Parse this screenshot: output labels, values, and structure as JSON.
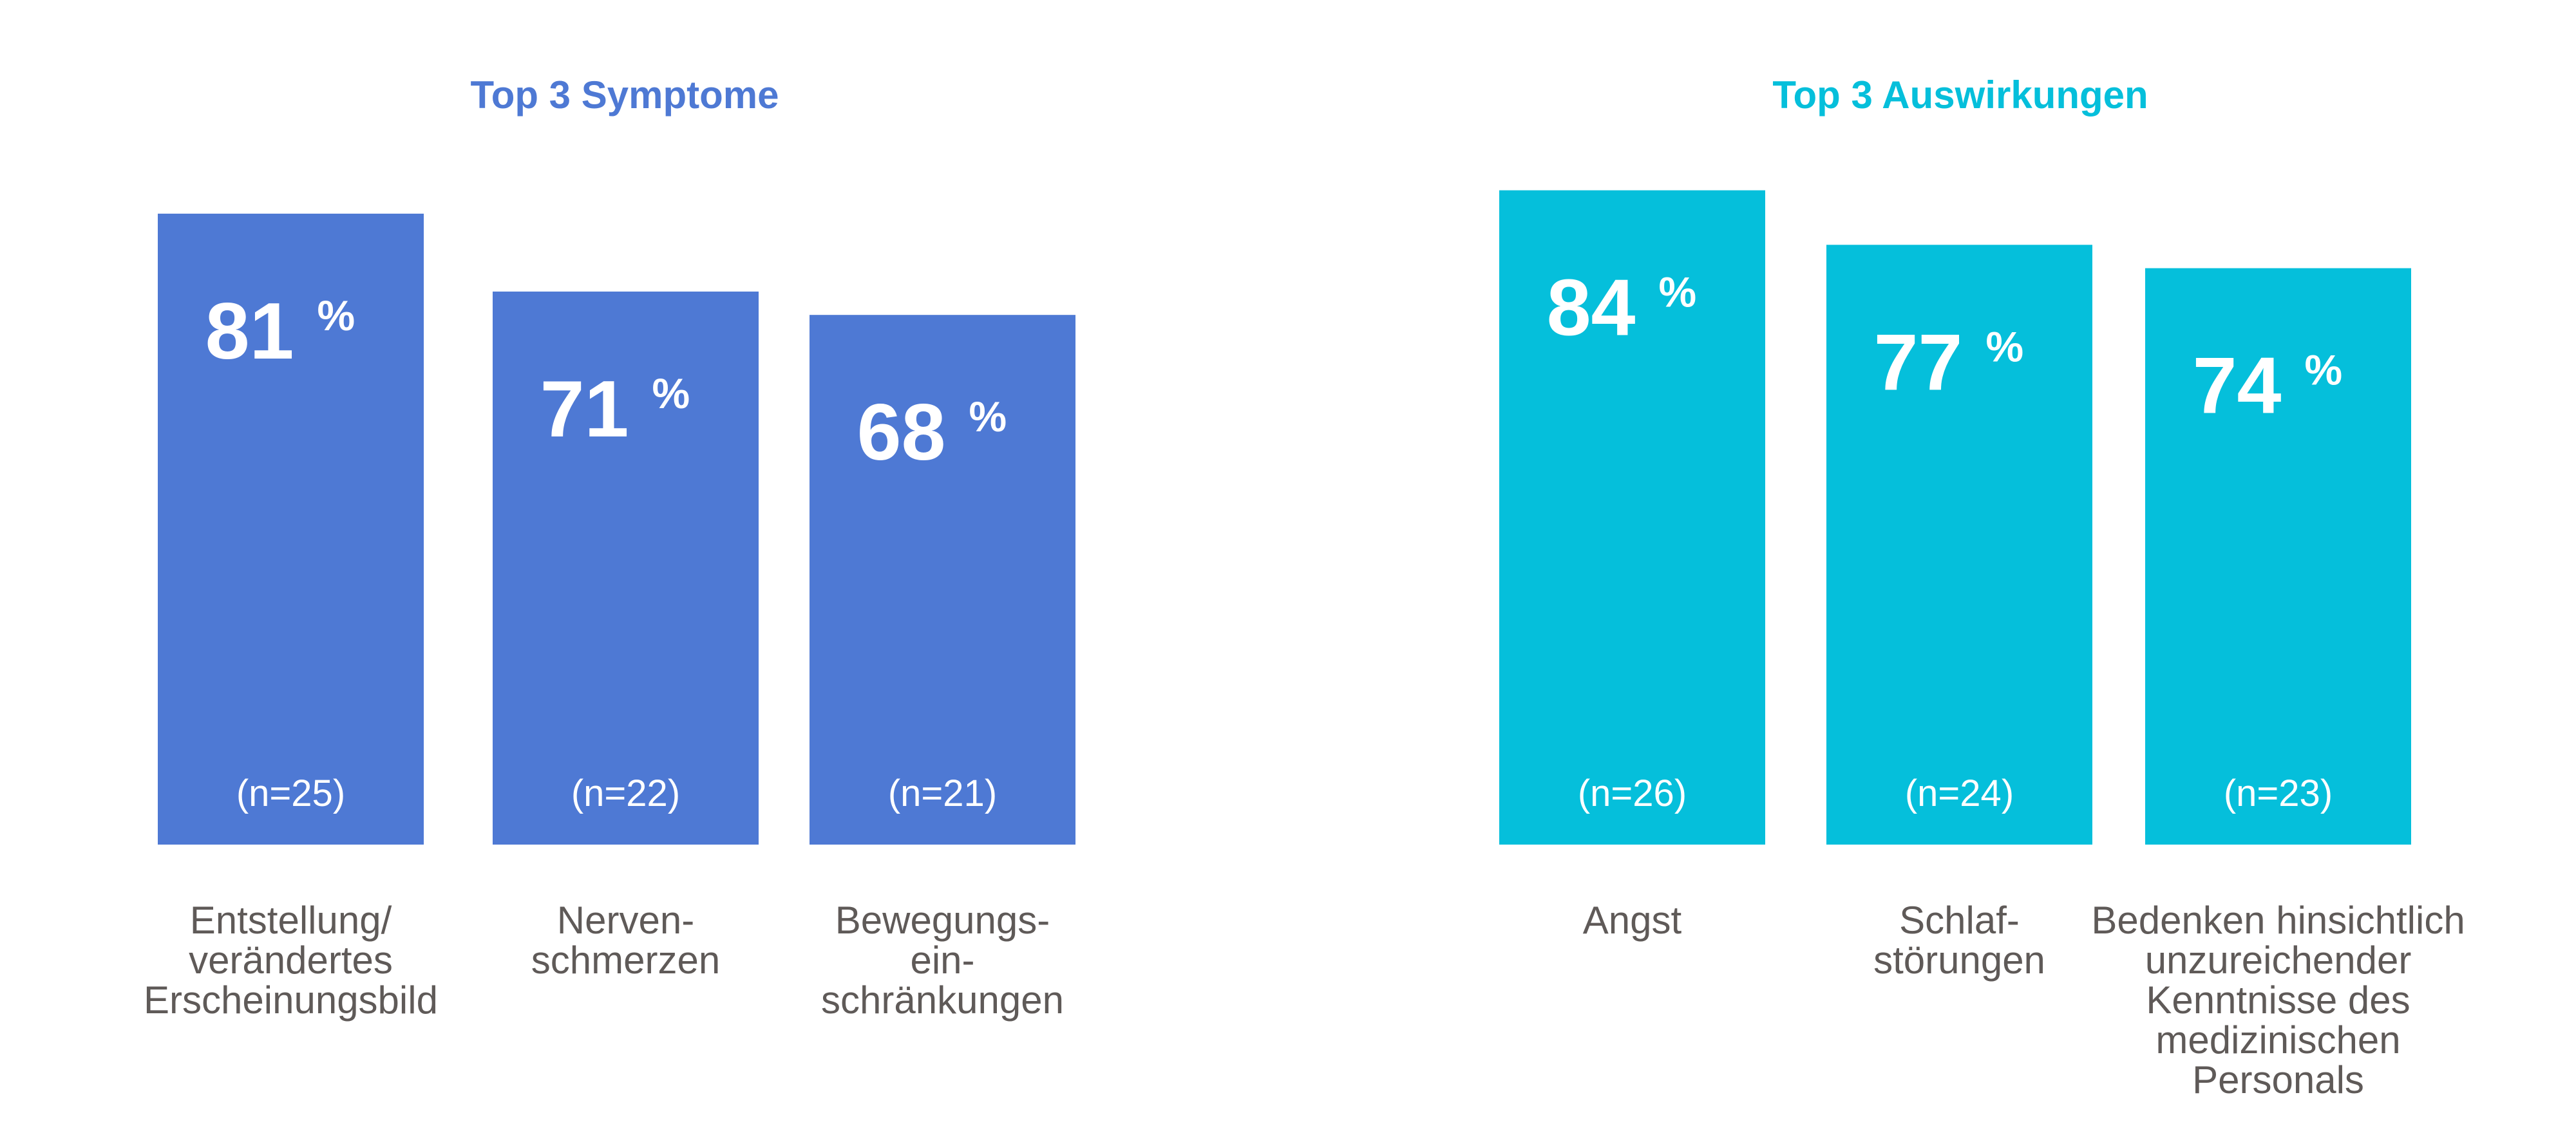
{
  "colors": {
    "symptoms": "#4e79d4",
    "impacts": "#05bfdb",
    "label": "#5f5a58",
    "value_text": "#ffffff"
  },
  "chart_data": [
    {
      "type": "bar",
      "title": "Top 3 Symptome",
      "color": "#4e79d4",
      "ylim": [
        0,
        100
      ],
      "percent_sign": "%",
      "categories": [
        [
          "Entstellung/",
          "verändertes",
          "Erscheinungsbild"
        ],
        [
          "Nerven-",
          "schmerzen"
        ],
        [
          "Bewegungs-",
          "ein-",
          "schränkungen"
        ]
      ],
      "values": [
        81,
        71,
        68
      ],
      "n_labels": [
        "(n=25)",
        "(n=22)",
        "(n=21)"
      ]
    },
    {
      "type": "bar",
      "title": "Top 3 Auswirkungen",
      "color": "#05bfdb",
      "ylim": [
        0,
        100
      ],
      "percent_sign": "%",
      "categories": [
        [
          "Angst"
        ],
        [
          "Schlaf-",
          "störungen"
        ],
        [
          "Bedenken hinsichtlich",
          "unzureichender",
          "Kenntnisse des",
          "medizinischen",
          "Personals"
        ]
      ],
      "values": [
        84,
        77,
        74
      ],
      "n_labels": [
        "(n=26)",
        "(n=24)",
        "(n=23)"
      ]
    }
  ]
}
